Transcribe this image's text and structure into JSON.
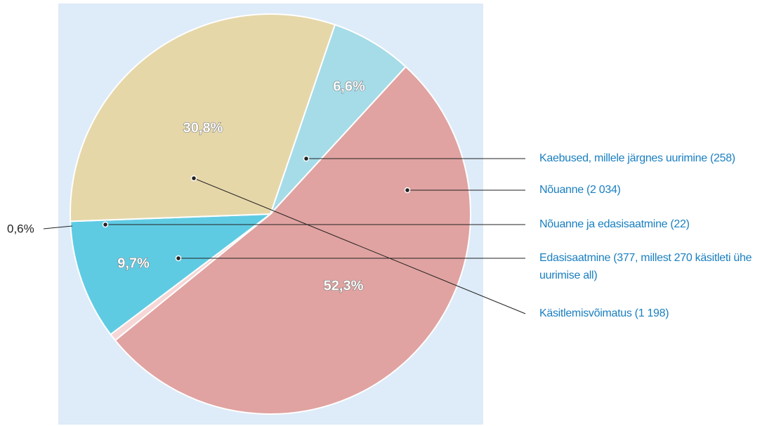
{
  "chart_data": {
    "type": "pie",
    "categories": [
      "Kaebused, millele järgnes uurimine (258)",
      "Nõuanne (2 034)",
      "Nõuanne ja edasisaatmine (22)",
      "Edasisaatmine (377, millest 270 käsitleti ühe uurimise all)",
      "Käsitlemisvõimatus (1 198)"
    ],
    "values": [
      6.6,
      52.3,
      0.6,
      9.7,
      30.8
    ],
    "value_labels": [
      "6,6%",
      "52,3%",
      "0,6%",
      "9,7%",
      "30,8%"
    ],
    "colors": [
      "#a5dce8",
      "#e0a3a1",
      "#f6d6d6",
      "#5fcbe3",
      "#e6d7a9"
    ]
  }
}
